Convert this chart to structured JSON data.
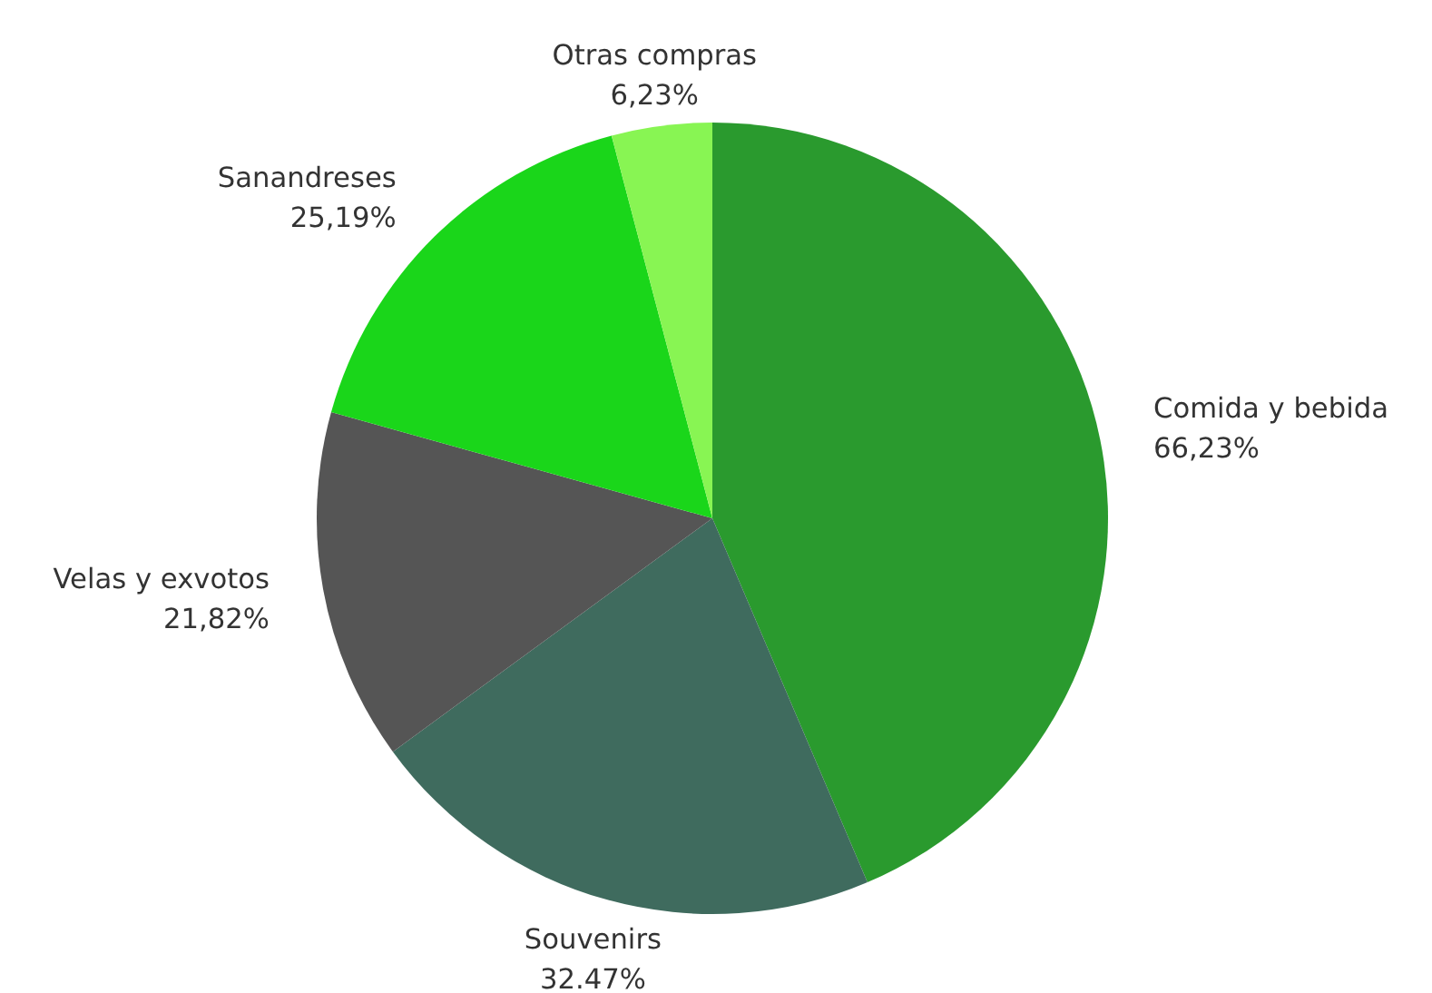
{
  "chart_data": {
    "type": "pie",
    "categories": [
      "Comida y bebida",
      "Souvenirs",
      "Velas y exvotos",
      "Sanandreses",
      "Otras compras"
    ],
    "values": [
      66.23,
      32.47,
      21.82,
      25.19,
      6.23
    ],
    "value_labels": [
      "66,23%",
      "32.47%",
      "21,82%",
      "25,19%",
      "6,23%"
    ],
    "colors": [
      "#2a9a2e",
      "#3f6b5e",
      "#555555",
      "#1ad61a",
      "#88f553"
    ]
  }
}
